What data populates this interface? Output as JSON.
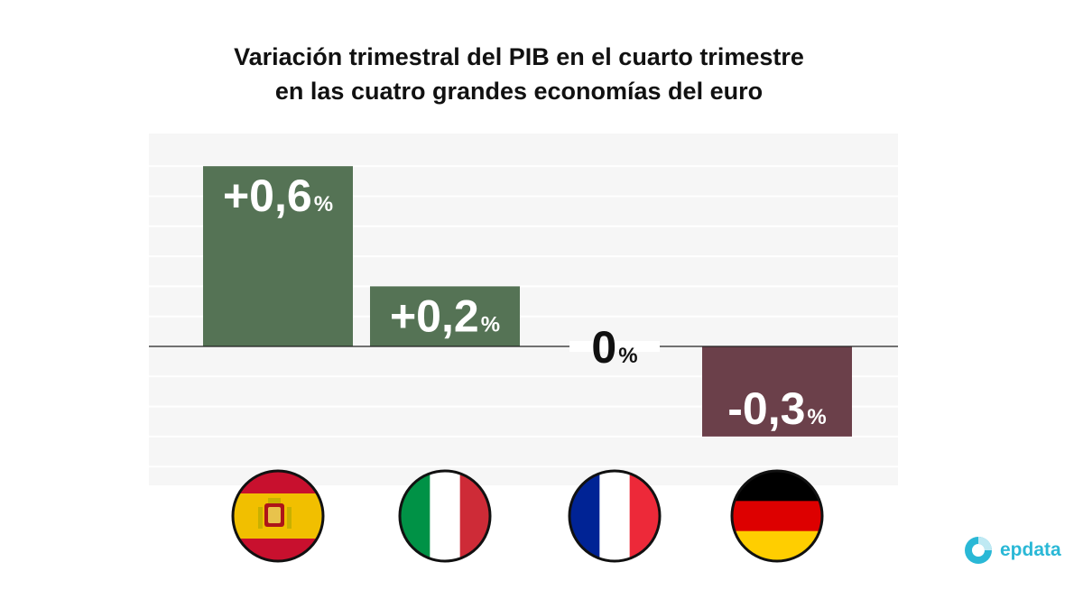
{
  "title": {
    "line1": "Variación trimestral del PIB en el cuarto trimestre",
    "line2": "en las cuatro grandes economías del euro"
  },
  "chart_data": {
    "type": "bar",
    "title": "Variación trimestral del PIB en el cuarto trimestre en las cuatro grandes economías del euro",
    "xlabel": "",
    "ylabel": "",
    "ylim": [
      -0.45,
      0.7
    ],
    "grid": true,
    "categories": [
      "España",
      "Italia",
      "Francia",
      "Alemania"
    ],
    "values": [
      0.6,
      0.2,
      0,
      -0.3
    ],
    "labels": [
      "+0,6",
      "+0,2",
      "0",
      "-0,3"
    ],
    "label_suffix": "%",
    "positive_color": "#557355",
    "negative_color": "#6b404a"
  },
  "flags": [
    {
      "icon": "spain-flag-icon",
      "colors": [
        "#c8102e",
        "#f1bf00",
        "#c8102e"
      ]
    },
    {
      "icon": "italy-flag-icon",
      "colors": [
        "#009246",
        "#ffffff",
        "#ce2b37"
      ]
    },
    {
      "icon": "france-flag-icon",
      "colors": [
        "#002395",
        "#ffffff",
        "#ed2939"
      ]
    },
    {
      "icon": "germany-flag-icon",
      "colors": [
        "#000000",
        "#dd0000",
        "#ffce00"
      ]
    }
  ],
  "brand": {
    "name": "epdata",
    "icon": "epdata-logo-icon",
    "color": "#2ab8d6"
  }
}
